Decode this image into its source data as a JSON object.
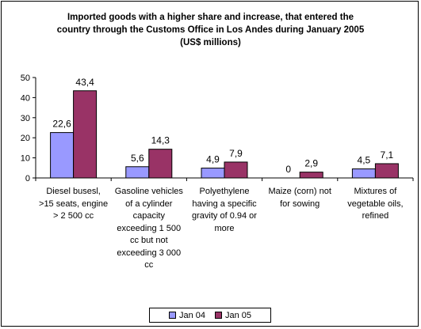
{
  "chart_data": {
    "type": "bar",
    "title": [
      "Imported goods with a higher share and increase, that entered the",
      "country through the Customs Office in  Los Andes during January 2005",
      "(US$ millions)"
    ],
    "categories": [
      [
        "Diesel busesl,",
        ">15 seats, engine",
        "> 2 500 cc"
      ],
      [
        "Gasoline vehicles",
        "of a cylinder",
        "capacity",
        "exceeding 1 500",
        "cc but not",
        "exceeding 3 000",
        "cc"
      ],
      [
        "Polyethylene",
        "having a specific",
        "gravity of 0.94 or",
        "more"
      ],
      [
        "Maize (corn) not",
        "for sowing"
      ],
      [
        "Mixtures of",
        "vegetable oils,",
        "refined"
      ]
    ],
    "series": [
      {
        "name": "Jan 04",
        "values": [
          22.6,
          5.6,
          4.9,
          0,
          4.5
        ],
        "labels": [
          "22,6",
          "5,6",
          "4,9",
          "0",
          "4,5"
        ],
        "color": "#9999ff"
      },
      {
        "name": "Jan 05",
        "values": [
          43.4,
          14.3,
          7.9,
          2.9,
          7.1
        ],
        "labels": [
          "43,4",
          "14,3",
          "7,9",
          "2,9",
          "7,1"
        ],
        "color": "#993366"
      }
    ],
    "ylim": [
      0,
      50
    ],
    "yticks": [
      "0",
      "10",
      "20",
      "30",
      "40",
      "50"
    ],
    "grid": false,
    "legend": "bottom"
  }
}
